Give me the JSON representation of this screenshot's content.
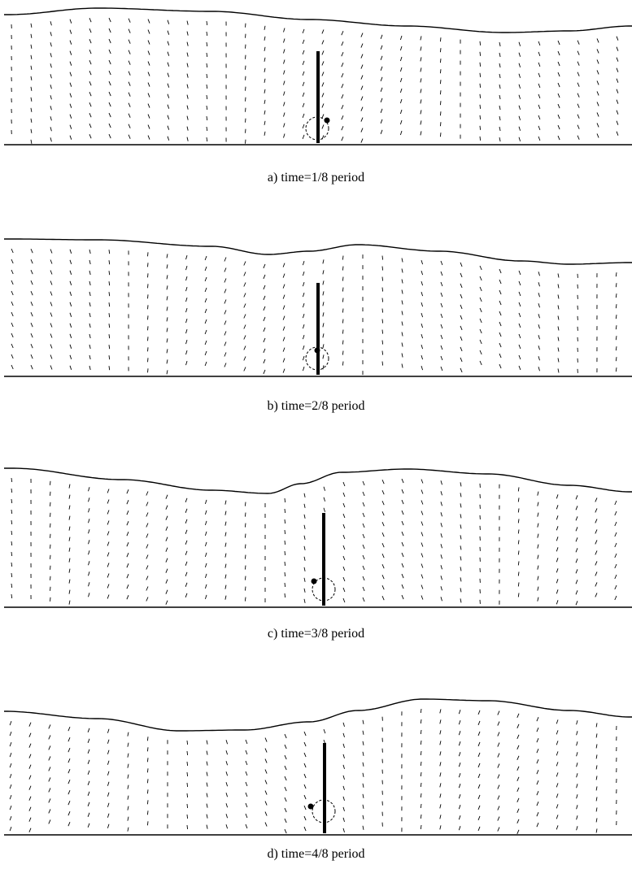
{
  "panels": [
    {
      "caption": "a) time=1/8 period"
    },
    {
      "caption": "b) time=2/8 period"
    },
    {
      "caption": "c) time=3/8 period"
    },
    {
      "caption": "d) time=4/8 period"
    }
  ],
  "colors": {
    "ink": "#000000",
    "background": "#ffffff"
  }
}
